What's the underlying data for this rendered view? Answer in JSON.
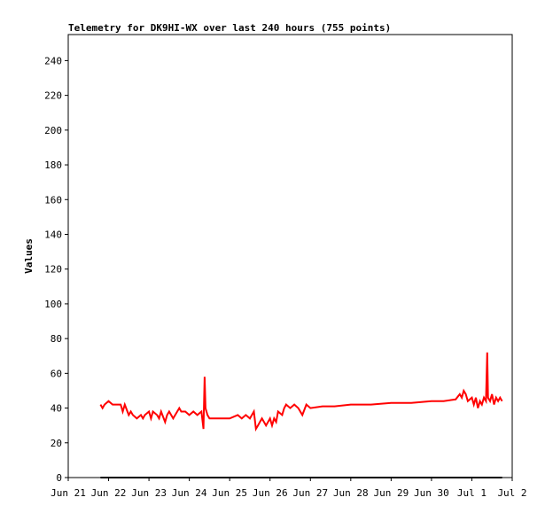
{
  "chart_data": {
    "type": "line",
    "title": "Telemetry for DK9HI-WX over last 240 hours (755 points)",
    "ylabel": "Values",
    "xlabel": "",
    "ylim": [
      0,
      255
    ],
    "xlim_days": [
      21,
      32
    ],
    "y_ticks": [
      0,
      20,
      40,
      60,
      80,
      100,
      120,
      140,
      160,
      180,
      200,
      220,
      240
    ],
    "x_ticks": [
      {
        "day": 21,
        "label": "Jun 21"
      },
      {
        "day": 22,
        "label": "Jun 22"
      },
      {
        "day": 23,
        "label": "Jun 23"
      },
      {
        "day": 24,
        "label": "Jun 24"
      },
      {
        "day": 25,
        "label": "Jun 25"
      },
      {
        "day": 26,
        "label": "Jun 26"
      },
      {
        "day": 27,
        "label": "Jun 27"
      },
      {
        "day": 28,
        "label": "Jun 28"
      },
      {
        "day": 29,
        "label": "Jun 29"
      },
      {
        "day": 30,
        "label": "Jun 30"
      },
      {
        "day": 31,
        "label": "Jul 1"
      },
      {
        "day": 32,
        "label": "Jul 2"
      }
    ],
    "grid": false,
    "series": [
      {
        "color": "#ff0000",
        "x": [
          21.8,
          21.85,
          21.9,
          22.0,
          22.1,
          22.2,
          22.3,
          22.35,
          22.4,
          22.5,
          22.55,
          22.6,
          22.7,
          22.8,
          22.85,
          22.9,
          23.0,
          23.05,
          23.1,
          23.2,
          23.25,
          23.3,
          23.4,
          23.45,
          23.5,
          23.6,
          23.7,
          23.75,
          23.8,
          23.9,
          24.0,
          24.1,
          24.2,
          24.3,
          24.35,
          24.38,
          24.4,
          24.45,
          24.5,
          24.6,
          24.7,
          24.8,
          25.0,
          25.2,
          25.3,
          25.4,
          25.5,
          25.6,
          25.65,
          25.7,
          25.75,
          25.8,
          25.9,
          26.0,
          26.05,
          26.1,
          26.15,
          26.2,
          26.3,
          26.35,
          26.4,
          26.5,
          26.6,
          26.7,
          26.8,
          26.9,
          27.0,
          27.3,
          27.6,
          28.0,
          28.5,
          29.0,
          29.5,
          30.0,
          30.3,
          30.6,
          30.7,
          30.75,
          30.8,
          30.85,
          30.9,
          31.0,
          31.05,
          31.1,
          31.15,
          31.2,
          31.25,
          31.3,
          31.35,
          31.38,
          31.4,
          31.45,
          31.5,
          31.55,
          31.6,
          31.65,
          31.7,
          31.75
        ],
        "y": [
          42,
          40,
          42,
          44,
          42,
          42,
          42,
          38,
          42,
          36,
          38,
          36,
          34,
          36,
          34,
          36,
          38,
          34,
          38,
          36,
          34,
          38,
          32,
          36,
          38,
          34,
          38,
          40,
          38,
          38,
          36,
          38,
          36,
          38,
          28,
          58,
          40,
          36,
          34,
          34,
          34,
          34,
          34,
          36,
          34,
          36,
          34,
          38,
          28,
          30,
          32,
          34,
          30,
          34,
          30,
          34,
          32,
          38,
          36,
          40,
          42,
          40,
          42,
          40,
          36,
          42,
          40,
          41,
          41,
          42,
          42,
          43,
          43,
          44,
          44,
          45,
          48,
          46,
          50,
          48,
          44,
          46,
          42,
          46,
          40,
          44,
          42,
          46,
          44,
          72,
          46,
          44,
          48,
          42,
          46,
          44,
          46,
          44
        ]
      },
      {
        "color": "#000000",
        "x": [
          21.8,
          31.75
        ],
        "y": [
          0,
          0
        ]
      }
    ]
  }
}
